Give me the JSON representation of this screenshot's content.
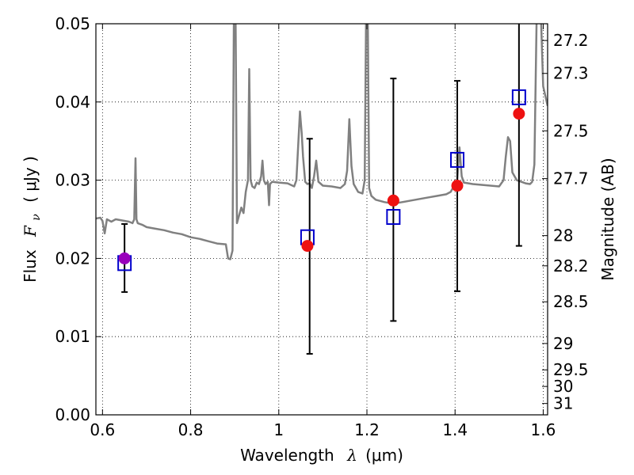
{
  "chart_data": {
    "type": "scatter",
    "xlabel": "Wavelength",
    "xlabel_symbol": "λ",
    "xlabel_unit": "(μm)",
    "ylabel": "Flux",
    "ylabel_symbol": "F",
    "ylabel_subscript": "ν",
    "ylabel_unit": "( μJy )",
    "y2label": "Magnitude (AB)",
    "xlim": [
      0.585,
      1.61
    ],
    "ylim": [
      0.0,
      0.05
    ],
    "grid": true,
    "grid_style": "dotted",
    "x_ticks": [
      0.6,
      0.8,
      1.0,
      1.2,
      1.4,
      1.6
    ],
    "x_tick_labels": [
      "0.6",
      "0.8",
      "1",
      "1.2",
      "1.4",
      "1.6"
    ],
    "y_ticks": [
      0.0,
      0.01,
      0.02,
      0.03,
      0.04,
      0.05
    ],
    "y_tick_labels": [
      "0.00",
      "0.01",
      "0.02",
      "0.03",
      "0.04",
      "0.05"
    ],
    "y2_ticks": [
      {
        "mag": "27.2",
        "flux": 0.04786
      },
      {
        "mag": "27.3",
        "flux": 0.04365
      },
      {
        "mag": "27.5",
        "flux": 0.03631
      },
      {
        "mag": "27.7",
        "flux": 0.0302
      },
      {
        "mag": "28",
        "flux": 0.02291
      },
      {
        "mag": "28.2",
        "flux": 0.01905
      },
      {
        "mag": "28.5",
        "flux": 0.01445
      },
      {
        "mag": "29",
        "flux": 0.00912
      },
      {
        "mag": "29.5",
        "flux": 0.00575
      },
      {
        "mag": "30",
        "flux": 0.00363
      },
      {
        "mag": "31",
        "flux": 0.00145
      }
    ],
    "series": [
      {
        "type": "line",
        "color": "#808080",
        "points": [
          [
            0.585,
            0.0251
          ],
          [
            0.595,
            0.0252
          ],
          [
            0.6,
            0.0248
          ],
          [
            0.605,
            0.0232
          ],
          [
            0.61,
            0.025
          ],
          [
            0.62,
            0.0247
          ],
          [
            0.63,
            0.025
          ],
          [
            0.64,
            0.0249
          ],
          [
            0.65,
            0.0248
          ],
          [
            0.66,
            0.0247
          ],
          [
            0.668,
            0.0245
          ],
          [
            0.672,
            0.025
          ],
          [
            0.675,
            0.0328
          ],
          [
            0.677,
            0.025
          ],
          [
            0.68,
            0.0245
          ],
          [
            0.69,
            0.0243
          ],
          [
            0.7,
            0.024
          ],
          [
            0.72,
            0.0238
          ],
          [
            0.74,
            0.0236
          ],
          [
            0.76,
            0.0233
          ],
          [
            0.78,
            0.0231
          ],
          [
            0.8,
            0.0227
          ],
          [
            0.82,
            0.0225
          ],
          [
            0.84,
            0.0222
          ],
          [
            0.86,
            0.0219
          ],
          [
            0.88,
            0.0218
          ],
          [
            0.885,
            0.02
          ],
          [
            0.89,
            0.0199
          ],
          [
            0.895,
            0.021
          ],
          [
            0.898,
            0.0505
          ],
          [
            0.902,
            0.0505
          ],
          [
            0.905,
            0.0245
          ],
          [
            0.91,
            0.0255
          ],
          [
            0.915,
            0.0265
          ],
          [
            0.92,
            0.0258
          ],
          [
            0.925,
            0.0285
          ],
          [
            0.93,
            0.03
          ],
          [
            0.933,
            0.0442
          ],
          [
            0.936,
            0.03
          ],
          [
            0.94,
            0.0292
          ],
          [
            0.945,
            0.029
          ],
          [
            0.95,
            0.0297
          ],
          [
            0.955,
            0.0295
          ],
          [
            0.96,
            0.0305
          ],
          [
            0.963,
            0.0325
          ],
          [
            0.966,
            0.03
          ],
          [
            0.97,
            0.0295
          ],
          [
            0.975,
            0.0298
          ],
          [
            0.978,
            0.0268
          ],
          [
            0.98,
            0.0295
          ],
          [
            0.985,
            0.0298
          ],
          [
            1.0,
            0.0297
          ],
          [
            1.02,
            0.0296
          ],
          [
            1.035,
            0.0292
          ],
          [
            1.04,
            0.03
          ],
          [
            1.045,
            0.0355
          ],
          [
            1.048,
            0.0388
          ],
          [
            1.052,
            0.036
          ],
          [
            1.055,
            0.033
          ],
          [
            1.06,
            0.0298
          ],
          [
            1.065,
            0.0295
          ],
          [
            1.07,
            0.0296
          ],
          [
            1.075,
            0.029
          ],
          [
            1.08,
            0.0305
          ],
          [
            1.085,
            0.0325
          ],
          [
            1.09,
            0.0298
          ],
          [
            1.1,
            0.0293
          ],
          [
            1.12,
            0.0292
          ],
          [
            1.14,
            0.029
          ],
          [
            1.15,
            0.0295
          ],
          [
            1.155,
            0.0312
          ],
          [
            1.16,
            0.0378
          ],
          [
            1.165,
            0.0318
          ],
          [
            1.17,
            0.0295
          ],
          [
            1.18,
            0.0285
          ],
          [
            1.19,
            0.0283
          ],
          [
            1.195,
            0.03
          ],
          [
            1.198,
            0.0505
          ],
          [
            1.202,
            0.0505
          ],
          [
            1.205,
            0.029
          ],
          [
            1.21,
            0.028
          ],
          [
            1.22,
            0.0275
          ],
          [
            1.24,
            0.0272
          ],
          [
            1.26,
            0.027
          ],
          [
            1.28,
            0.0272
          ],
          [
            1.3,
            0.0274
          ],
          [
            1.32,
            0.0276
          ],
          [
            1.34,
            0.0278
          ],
          [
            1.36,
            0.028
          ],
          [
            1.38,
            0.0282
          ],
          [
            1.39,
            0.0285
          ],
          [
            1.395,
            0.029
          ],
          [
            1.4,
            0.0296
          ],
          [
            1.405,
            0.03
          ],
          [
            1.41,
            0.0342
          ],
          [
            1.415,
            0.0305
          ],
          [
            1.42,
            0.0297
          ],
          [
            1.44,
            0.0295
          ],
          [
            1.46,
            0.0294
          ],
          [
            1.48,
            0.0293
          ],
          [
            1.5,
            0.0292
          ],
          [
            1.51,
            0.03
          ],
          [
            1.515,
            0.033
          ],
          [
            1.52,
            0.0355
          ],
          [
            1.525,
            0.035
          ],
          [
            1.53,
            0.031
          ],
          [
            1.54,
            0.03
          ],
          [
            1.56,
            0.0296
          ],
          [
            1.57,
            0.0295
          ],
          [
            1.575,
            0.0298
          ],
          [
            1.58,
            0.032
          ],
          [
            1.585,
            0.0505
          ],
          [
            1.595,
            0.0505
          ],
          [
            1.6,
            0.042
          ],
          [
            1.61,
            0.0395
          ]
        ]
      },
      {
        "type": "errorbar",
        "color": "#000000",
        "points": [
          {
            "x": 0.65,
            "lo": 0.0157,
            "hi": 0.0244
          },
          {
            "x": 1.07,
            "lo": 0.0078,
            "hi": 0.0353
          },
          {
            "x": 1.26,
            "lo": 0.012,
            "hi": 0.043
          },
          {
            "x": 1.405,
            "lo": 0.0158,
            "hi": 0.0427
          },
          {
            "x": 1.545,
            "lo": 0.0216,
            "hi": 0.0505
          }
        ]
      },
      {
        "type": "square",
        "color": "#0000cc",
        "points": [
          [
            0.65,
            0.0194
          ],
          [
            1.065,
            0.0227
          ],
          [
            1.26,
            0.0253
          ],
          [
            1.405,
            0.0326
          ],
          [
            1.545,
            0.0406
          ]
        ]
      },
      {
        "type": "circle",
        "color": "#ee1111",
        "points": [
          [
            0.65,
            0.02
          ],
          [
            1.065,
            0.0216
          ],
          [
            1.26,
            0.0274
          ],
          [
            1.405,
            0.0293
          ],
          [
            1.545,
            0.0385
          ]
        ]
      }
    ],
    "overlap_color": "#9900bb"
  }
}
